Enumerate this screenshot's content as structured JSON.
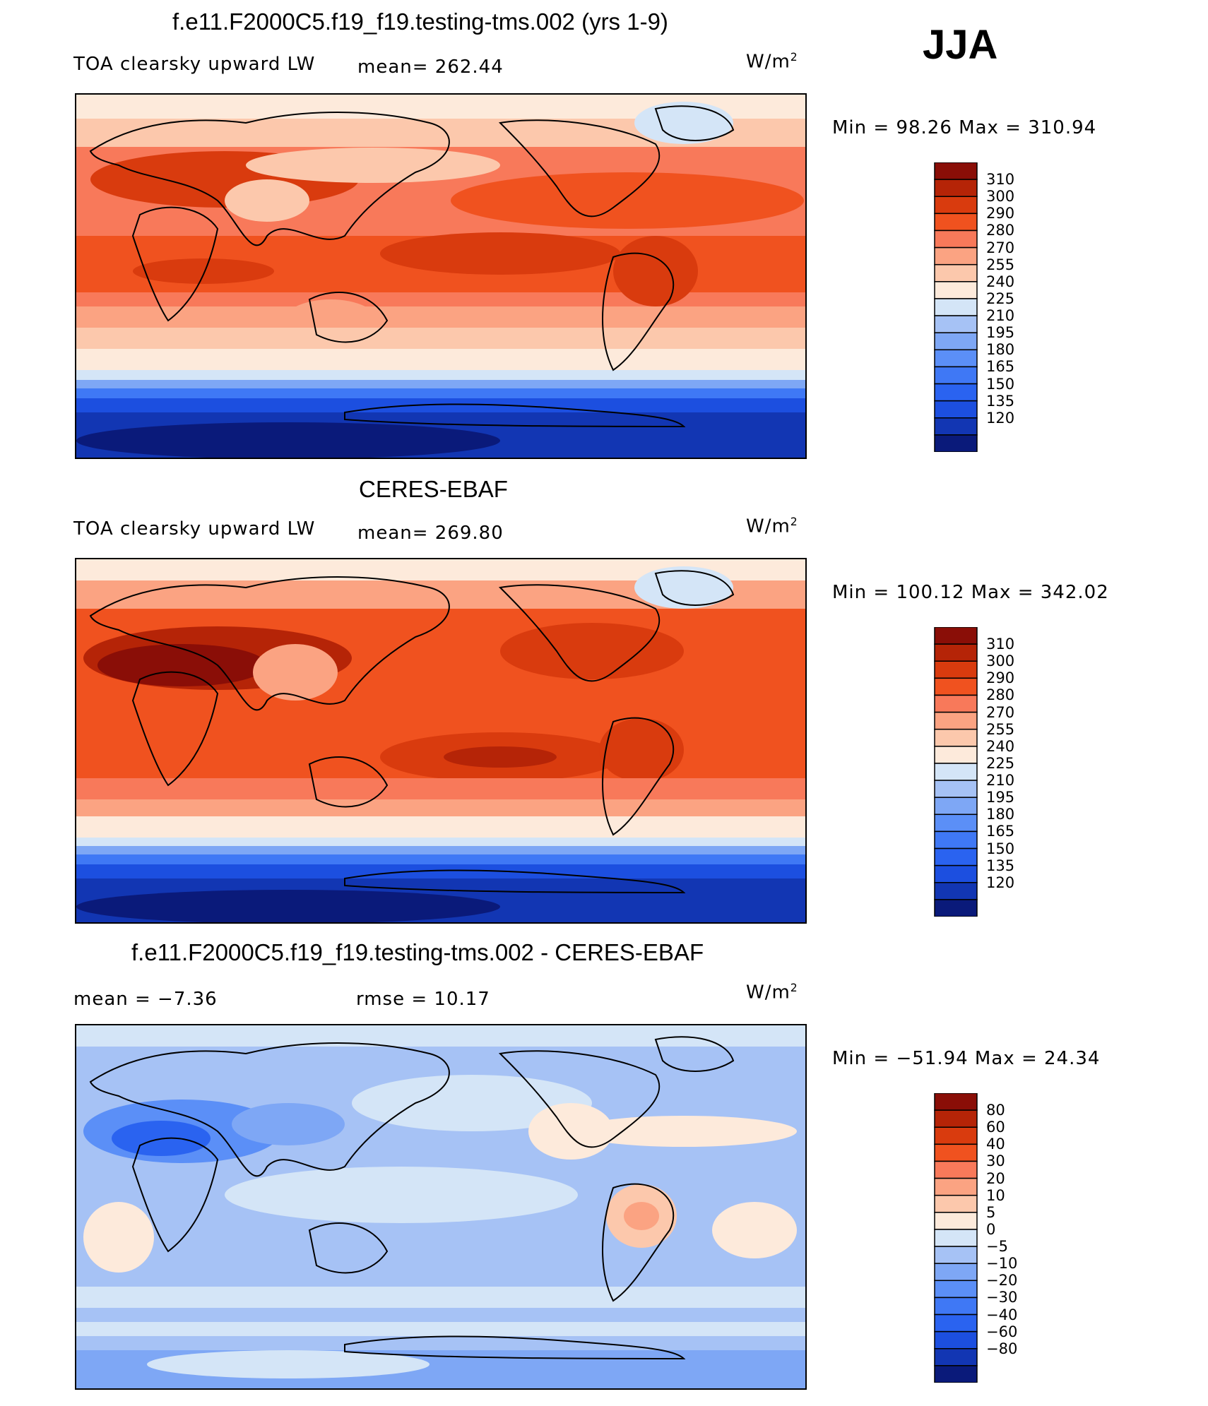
{
  "season": "JJA",
  "colors": {
    "model_scale": [
      "#0a1a7a",
      "#1236b3",
      "#1c4fe0",
      "#2a63f0",
      "#3f78f5",
      "#5b8ff7",
      "#7ea7f5",
      "#a6c2f5",
      "#d4e5f7",
      "#fdeadb",
      "#fcc8ac",
      "#fba382",
      "#f8795a",
      "#f0521f",
      "#d93b0e",
      "#b52407",
      "#8a0e07"
    ],
    "diff_scale": [
      "#0a1a7a",
      "#1236b3",
      "#1c4fe0",
      "#2a63f0",
      "#3f78f5",
      "#5b8ff7",
      "#7ea7f5",
      "#a6c2f5",
      "#d4e5f7",
      "#fdeadb",
      "#fcc8ac",
      "#fba382",
      "#f8795a",
      "#f0521f",
      "#d93b0e",
      "#b52407",
      "#8a0e07"
    ]
  },
  "panels": [
    {
      "title": "f.e11.F2000C5.f19_f19.testing-tms.002 (yrs 1-9)",
      "left_label": "TOA clearsky upward LW",
      "center_label": "mean=  262.44",
      "units": "W/m",
      "units_sup": "2",
      "minmax": "Min =   98.26 Max  =  310.94"
    },
    {
      "title": "CERES-EBAF",
      "left_label": "TOA clearsky upward LW",
      "center_label": "mean=  269.80",
      "units": "W/m",
      "units_sup": "2",
      "minmax": "Min  =  100.12 Max  =  342.02"
    },
    {
      "title": "f.e11.F2000C5.f19_f19.testing-tms.002 - CERES-EBAF",
      "left_label": "mean  =    −7.36",
      "center_label": "rmse  =    10.17",
      "units": "W/m",
      "units_sup": "2",
      "minmax": "Min  =  −51.94 Max  =    24.34"
    }
  ],
  "chart_data": [
    {
      "type": "heatmap",
      "title": "f.e11.F2000C5.f19_f19.testing-tms.002 (yrs 1-9)",
      "variable": "TOA clearsky upward LW",
      "units": "W/m2",
      "mean": 262.44,
      "min": 98.26,
      "max": 310.94,
      "colorbar_levels": [
        "310",
        "300",
        "290",
        "280",
        "270",
        "255",
        "240",
        "225",
        "210",
        "195",
        "180",
        "165",
        "150",
        "135",
        "120"
      ]
    },
    {
      "type": "heatmap",
      "title": "CERES-EBAF",
      "variable": "TOA clearsky upward LW",
      "units": "W/m2",
      "mean": 269.8,
      "min": 100.12,
      "max": 342.02,
      "colorbar_levels": [
        "310",
        "300",
        "290",
        "280",
        "270",
        "255",
        "240",
        "225",
        "210",
        "195",
        "180",
        "165",
        "150",
        "135",
        "120"
      ]
    },
    {
      "type": "heatmap",
      "title": "f.e11.F2000C5.f19_f19.testing-tms.002 - CERES-EBAF",
      "units": "W/m2",
      "mean": -7.36,
      "rmse": 10.17,
      "min": -51.94,
      "max": 24.34,
      "colorbar_levels": [
        "80",
        "60",
        "40",
        "30",
        "20",
        "10",
        "5",
        "0",
        "−5",
        "−10",
        "−20",
        "−30",
        "−40",
        "−60",
        "−80"
      ]
    }
  ]
}
